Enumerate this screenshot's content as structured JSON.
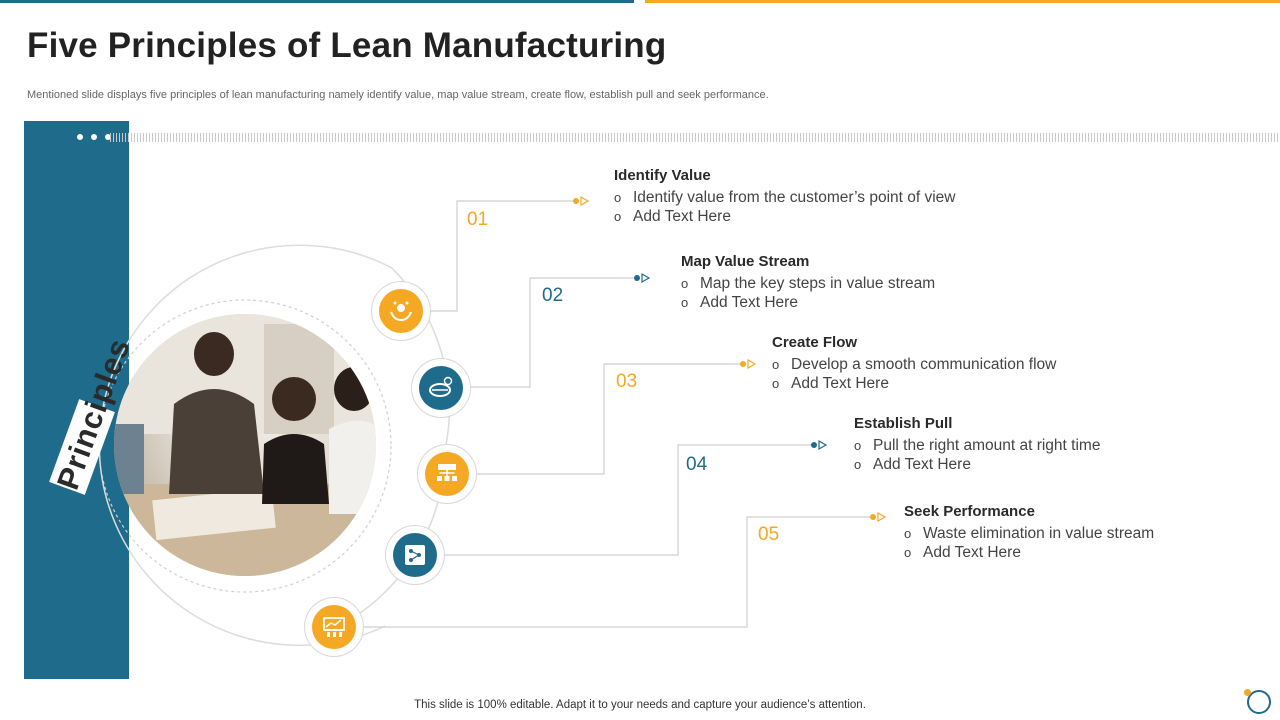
{
  "header": {
    "title": "Five Principles of Lean Manufacturing",
    "subtitle": "Mentioned slide displays five principles of lean manufacturing namely identify value, map value stream, create flow, establish pull and seek performance."
  },
  "side_label": "Principles",
  "colors": {
    "accent_blue": "#1f6b8c",
    "accent_orange": "#f4a823"
  },
  "principles": [
    {
      "number": "01",
      "title": "Identify Value",
      "bullets": [
        "Identify value from the customer’s point of view",
        "Add Text Here"
      ],
      "icon": "hands-value-icon"
    },
    {
      "number": "02",
      "title": "Map Value Stream",
      "bullets": [
        "Map the key steps in value stream",
        "Add Text Here"
      ],
      "icon": "globe-network-icon"
    },
    {
      "number": "03",
      "title": "Create Flow",
      "bullets": [
        "Develop a smooth communication flow",
        "Add Text Here"
      ],
      "icon": "flowchart-icon"
    },
    {
      "number": "04",
      "title": "Establish Pull",
      "bullets": [
        "Pull the right amount at right time",
        "Add Text Here"
      ],
      "icon": "process-board-icon"
    },
    {
      "number": "05",
      "title": "Seek Performance",
      "bullets": [
        "Waste elimination in value stream",
        "Add Text Here"
      ],
      "icon": "performance-chart-icon"
    }
  ],
  "bullet_glyph": "o",
  "footer": "This slide is 100% editable. Adapt it to your needs and capture your audience’s attention."
}
